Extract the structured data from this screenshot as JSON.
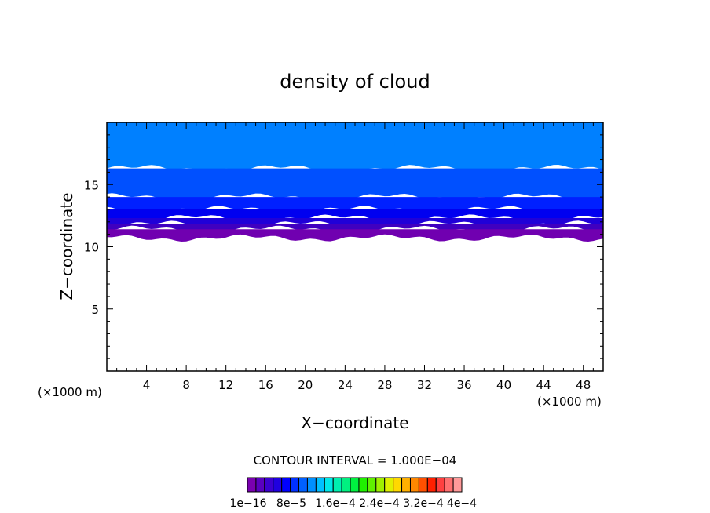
{
  "chart_data": {
    "type": "heatmap",
    "title": "density of cloud",
    "xlabel": "X−coordinate",
    "ylabel": "Z−coordinate",
    "x_unit_left": "(×1000 m)",
    "x_unit_right": "(×1000 m)",
    "xlim": [
      0,
      50
    ],
    "ylim": [
      0,
      20
    ],
    "x_ticks": [
      "4",
      "8",
      "12",
      "16",
      "20",
      "24",
      "28",
      "32",
      "36",
      "40",
      "44",
      "48"
    ],
    "y_ticks": [
      "5",
      "10",
      "15"
    ],
    "contour_interval_text": "CONTOUR INTERVAL = 1.000E−04",
    "colorbar": {
      "colors": [
        "#7a00b0",
        "#5a00c0",
        "#3c00d0",
        "#2000e0",
        "#0000ff",
        "#0030ff",
        "#0060ff",
        "#0090ff",
        "#00c0ff",
        "#00e8e8",
        "#00f0b0",
        "#00f080",
        "#00f040",
        "#20f000",
        "#60f000",
        "#a0f000",
        "#e0f000",
        "#ffd800",
        "#ffb000",
        "#ff8800",
        "#ff5000",
        "#ff2000",
        "#ff4040",
        "#ff7070",
        "#ff9a9a"
      ],
      "labels": [
        "1e−16",
        "8e−5",
        "1.6e−4",
        "2.4e−4",
        "3.2e−4",
        "4e−4"
      ]
    },
    "layers": [
      {
        "color": "#0080ff",
        "z_bottom": 16.3,
        "z_top": 20
      },
      {
        "color": "#0050ff",
        "z_bottom": 14.0,
        "z_top": 16.3
      },
      {
        "color": "#0020ff",
        "z_bottom": 13.0,
        "z_top": 14.0
      },
      {
        "color": "#0000f0",
        "z_bottom": 12.3,
        "z_top": 13.0
      },
      {
        "color": "#2000d8",
        "z_bottom": 11.8,
        "z_top": 12.3
      },
      {
        "color": "#4000c0",
        "z_bottom": 11.4,
        "z_top": 11.8
      },
      {
        "color": "#7000b0",
        "z_bottom": 10.7,
        "z_top": 11.4
      }
    ],
    "cloud_base_z": 10.7,
    "cloud_top_z": 20,
    "grid": false,
    "legend": "bottom colorbar"
  }
}
